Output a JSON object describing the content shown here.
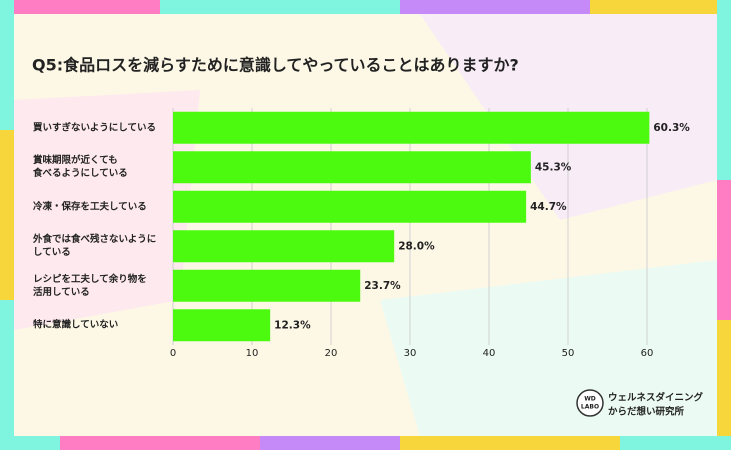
{
  "chart_data": {
    "type": "bar",
    "orientation": "horizontal",
    "title": "Q5:食品ロスを減らすために意識してやっていることはありますか?",
    "categories": [
      "買いすぎないようにしている",
      "賞味期限が近くても\n食べるようにしている",
      "冷凍・保存を工夫している",
      "外食では食べ残さないように\nしている",
      "レシピを工夫して余り物を\n活用している",
      "特に意識していない"
    ],
    "values": [
      60.3,
      45.3,
      44.7,
      28.0,
      23.7,
      12.3
    ],
    "value_labels": [
      "60.3%",
      "45.3%",
      "44.7%",
      "28.0%",
      "23.7%",
      "12.3%"
    ],
    "color": "#4cfa10",
    "xlim": [
      0,
      60
    ],
    "xticks": [
      0,
      10,
      20,
      30,
      40,
      50,
      60
    ],
    "grid": true
  },
  "logo": {
    "mark": [
      "WD",
      "LABO"
    ],
    "text": [
      "ウェルネスダイニング",
      "からだ想い研究所"
    ]
  }
}
